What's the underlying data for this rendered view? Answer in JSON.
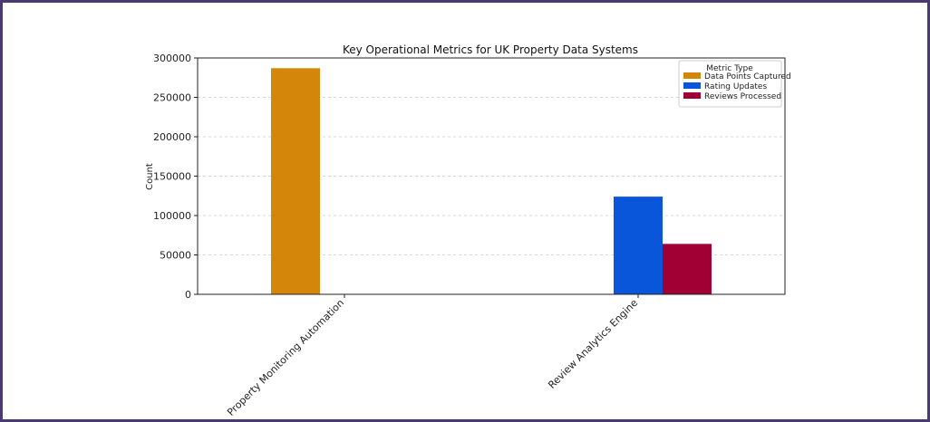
{
  "colors": {
    "frame": "#4a3a72",
    "grid": "#cccccc"
  },
  "chart_data": {
    "type": "bar",
    "title": "Key Operational Metrics for UK Property Data Systems",
    "xlabel": "",
    "ylabel": "Count",
    "categories": [
      "Property Monitoring Automation",
      "Review Analytics Engine"
    ],
    "ylim": [
      0,
      300000
    ],
    "yticks": [
      0,
      50000,
      100000,
      150000,
      200000,
      250000,
      300000
    ],
    "grid": "horizontal dashed",
    "legend": {
      "title": "Metric Type",
      "placement": "top-right"
    },
    "series": [
      {
        "name": "Data Points Captured",
        "color": "#D4860B",
        "values": [
          287000,
          0
        ]
      },
      {
        "name": "Rating Updates",
        "color": "#0A56DB",
        "values": [
          0,
          124000
        ]
      },
      {
        "name": "Reviews Processed",
        "color": "#A10035",
        "values": [
          0,
          64000
        ]
      }
    ]
  }
}
